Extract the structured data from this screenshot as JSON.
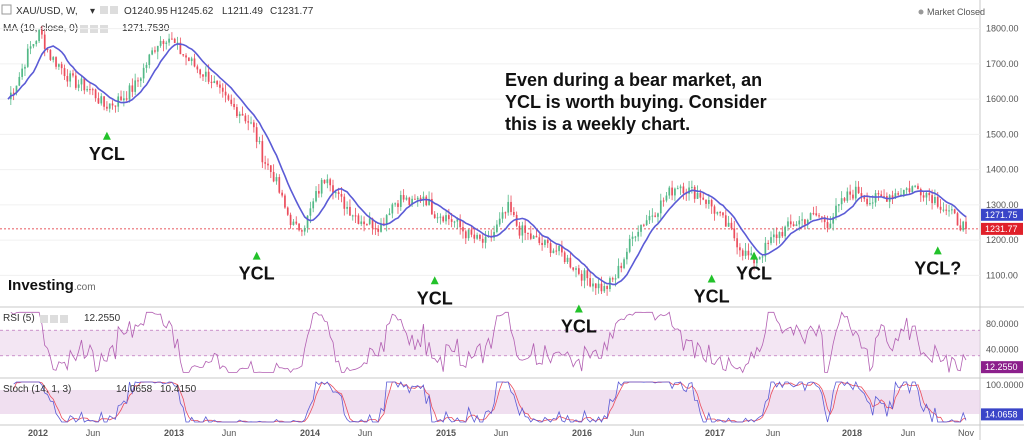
{
  "header": {
    "symbol": "XAU/USD, W,",
    "open": "O1240.95",
    "high": "H1245.62",
    "low": "L1211.49",
    "close": "C1231.77",
    "status": "Market Closed"
  },
  "indicators": {
    "ma_label": "MA (10, close, 0)",
    "ma_value": "1271.7530",
    "rsi_label": "RSI (5)",
    "rsi_value": "12.2550",
    "stoch_label": "Stoch (14, 1, 3)",
    "stoch_k": "14.0658",
    "stoch_d": "10.4150"
  },
  "annotation": {
    "lines": [
      "Even during a bear market, an",
      "YCL is worth buying. Consider",
      "this is a weekly chart."
    ]
  },
  "brand": {
    "name": "Investing",
    "suffix": ".com"
  },
  "colors": {
    "up": "#53b987",
    "down": "#eb4d5c",
    "ma": "#5b5bd6",
    "rsi": "#b25fb2",
    "stoch_k": "#5b5bd6",
    "stoch_d": "#eb4d5c",
    "band": "#e9d2e9",
    "marker": "#22c22a",
    "ma_badge": "#3a45c8",
    "close_badge": "#e0202a",
    "rsi_badge": "#8b1f8b",
    "stoch_badge": "#3a45c8"
  },
  "chart_data": {
    "type": "candlestick",
    "price_axis": {
      "ticks": [
        1100,
        1200,
        1300,
        1400,
        1500,
        1600,
        1700,
        1800
      ],
      "labels": [
        "1100.00",
        "1200.00",
        "1300.00",
        "1400.00",
        "1500.00",
        "1600.00",
        "1700.00",
        "1800.00"
      ],
      "range": [
        1030,
        1830
      ]
    },
    "time_axis": {
      "labels": [
        "2012",
        "Jun",
        "2013",
        "Jun",
        "2014",
        "Jun",
        "2015",
        "Jun",
        "2016",
        "Jun",
        "2017",
        "Jun",
        "2018",
        "Jun",
        "Nov"
      ],
      "bold": [
        true,
        false,
        true,
        false,
        true,
        false,
        true,
        false,
        true,
        false,
        true,
        false,
        true,
        false,
        false
      ]
    },
    "close_series": [
      1600,
      1660,
      1740,
      1790,
      1720,
      1690,
      1650,
      1640,
      1620,
      1580,
      1590,
      1610,
      1640,
      1700,
      1760,
      1780,
      1740,
      1710,
      1680,
      1660,
      1610,
      1580,
      1560,
      1520,
      1430,
      1380,
      1290,
      1230,
      1250,
      1330,
      1390,
      1320,
      1290,
      1260,
      1250,
      1240,
      1300,
      1320,
      1300,
      1330,
      1280,
      1270,
      1250,
      1220,
      1200,
      1190,
      1240,
      1290,
      1230,
      1210,
      1190,
      1180,
      1160,
      1130,
      1100,
      1080,
      1060,
      1090,
      1160,
      1230,
      1260,
      1290,
      1330,
      1360,
      1340,
      1330,
      1300,
      1260,
      1220,
      1170,
      1140,
      1170,
      1210,
      1230,
      1250,
      1260,
      1270,
      1250,
      1290,
      1330,
      1340,
      1310,
      1320,
      1330,
      1340,
      1350,
      1340,
      1320,
      1290,
      1260,
      1231.77
    ],
    "ma_series_last": 1271.753,
    "last_close": 1231.77,
    "ycl_markers": [
      {
        "label": "YCL",
        "price": 1530
      },
      {
        "label": "YCL",
        "price": 1190
      },
      {
        "label": "YCL",
        "price": 1120
      },
      {
        "label": "YCL",
        "price": 1040
      },
      {
        "label": "YCL",
        "price": 1125
      },
      {
        "label": "YCL",
        "price": 1190
      },
      {
        "label": "YCL?",
        "price": 1205
      }
    ],
    "rsi": {
      "ticks": [
        "80.0000",
        "40.0000"
      ],
      "band": [
        30,
        70
      ],
      "range": [
        0,
        100
      ],
      "last": 12.255
    },
    "stoch": {
      "ticks": [
        "100.0000"
      ],
      "band": [
        20,
        80
      ],
      "range": [
        0,
        100
      ],
      "k_last": 14.0658,
      "d_last": 10.415
    },
    "badges": {
      "ma": "1271.75",
      "close": "1231.77",
      "rsi": "12.2550",
      "stoch": "14.0658"
    }
  }
}
